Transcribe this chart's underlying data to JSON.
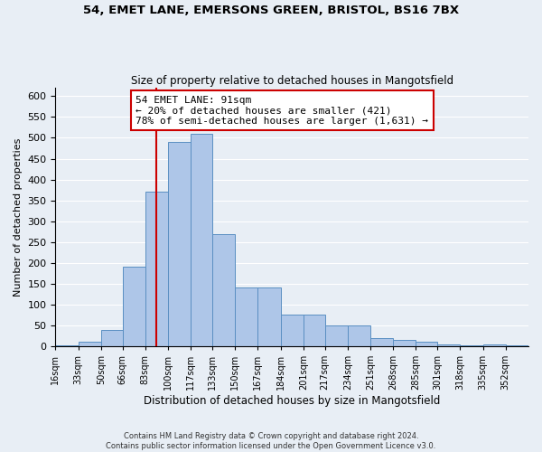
{
  "title_line1": "54, EMET LANE, EMERSONS GREEN, BRISTOL, BS16 7BX",
  "title_line2": "Size of property relative to detached houses in Mangotsfield",
  "xlabel": "Distribution of detached houses by size in Mangotsfield",
  "ylabel": "Number of detached properties",
  "bin_labels": [
    "16sqm",
    "33sqm",
    "50sqm",
    "66sqm",
    "83sqm",
    "100sqm",
    "117sqm",
    "133sqm",
    "150sqm",
    "167sqm",
    "184sqm",
    "201sqm",
    "217sqm",
    "234sqm",
    "251sqm",
    "268sqm",
    "285sqm",
    "301sqm",
    "318sqm",
    "335sqm",
    "352sqm"
  ],
  "bin_edges": [
    16,
    33,
    50,
    66,
    83,
    100,
    117,
    133,
    150,
    167,
    184,
    201,
    217,
    234,
    251,
    268,
    285,
    301,
    318,
    335,
    352,
    369
  ],
  "bar_heights": [
    2,
    10,
    40,
    190,
    370,
    490,
    510,
    270,
    140,
    140,
    75,
    75,
    50,
    50,
    20,
    15,
    10,
    5,
    3,
    5,
    2
  ],
  "bar_color": "#aec6e8",
  "bar_edge_color": "#5a8fc2",
  "property_size": 91,
  "vline_color": "#cc0000",
  "annotation_text": "54 EMET LANE: 91sqm\n← 20% of detached houses are smaller (421)\n78% of semi-detached houses are larger (1,631) →",
  "annotation_box_color": "#ffffff",
  "annotation_box_edge": "#cc0000",
  "ylim": [
    0,
    620
  ],
  "yticks": [
    0,
    50,
    100,
    150,
    200,
    250,
    300,
    350,
    400,
    450,
    500,
    550,
    600
  ],
  "footer_line1": "Contains HM Land Registry data © Crown copyright and database right 2024.",
  "footer_line2": "Contains public sector information licensed under the Open Government Licence v3.0.",
  "background_color": "#e8eef5",
  "plot_bg_color": "#e8eef5"
}
